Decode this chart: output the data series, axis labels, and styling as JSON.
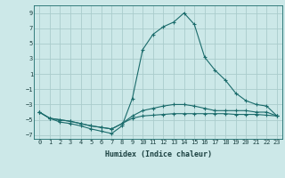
{
  "xlabel": "Humidex (Indice chaleur)",
  "bg_color": "#cce8e8",
  "grid_color": "#aacccc",
  "line_color": "#1a6b6b",
  "xlim": [
    -0.5,
    23.5
  ],
  "ylim": [
    -7.5,
    10.0
  ],
  "yticks": [
    -7,
    -5,
    -3,
    -1,
    1,
    3,
    5,
    7,
    9
  ],
  "xticks": [
    0,
    1,
    2,
    3,
    4,
    5,
    6,
    7,
    8,
    9,
    10,
    11,
    12,
    13,
    14,
    15,
    16,
    17,
    18,
    19,
    20,
    21,
    22,
    23
  ],
  "line1_x": [
    0,
    1,
    2,
    3,
    4,
    5,
    6,
    7,
    8,
    9,
    10,
    11,
    12,
    13,
    14,
    15,
    16,
    17,
    18,
    19,
    20,
    21,
    22,
    23
  ],
  "line1_y": [
    -4,
    -4.8,
    -5.3,
    -5.5,
    -5.8,
    -6.2,
    -6.5,
    -6.8,
    -5.8,
    -2.2,
    4.2,
    6.2,
    7.2,
    7.8,
    9.0,
    7.5,
    3.2,
    1.5,
    0.2,
    -1.5,
    -2.5,
    -3.0,
    -3.2,
    -4.5
  ],
  "line2_x": [
    0,
    1,
    2,
    3,
    4,
    5,
    6,
    7,
    8,
    9,
    10,
    11,
    12,
    13,
    14,
    15,
    16,
    17,
    18,
    19,
    20,
    21,
    22,
    23
  ],
  "line2_y": [
    -4.0,
    -4.8,
    -5.0,
    -5.2,
    -5.5,
    -5.8,
    -6.0,
    -6.2,
    -5.5,
    -4.5,
    -3.8,
    -3.5,
    -3.2,
    -3.0,
    -3.0,
    -3.2,
    -3.5,
    -3.8,
    -3.8,
    -3.8,
    -3.8,
    -4.0,
    -4.0,
    -4.5
  ],
  "line3_x": [
    0,
    1,
    2,
    3,
    4,
    5,
    6,
    7,
    8,
    9,
    10,
    11,
    12,
    13,
    14,
    15,
    16,
    17,
    18,
    19,
    20,
    21,
    22,
    23
  ],
  "line3_y": [
    -4.0,
    -4.8,
    -5.0,
    -5.2,
    -5.5,
    -5.8,
    -6.0,
    -6.2,
    -5.5,
    -4.8,
    -4.5,
    -4.4,
    -4.3,
    -4.2,
    -4.2,
    -4.2,
    -4.2,
    -4.2,
    -4.2,
    -4.3,
    -4.3,
    -4.3,
    -4.4,
    -4.5
  ]
}
